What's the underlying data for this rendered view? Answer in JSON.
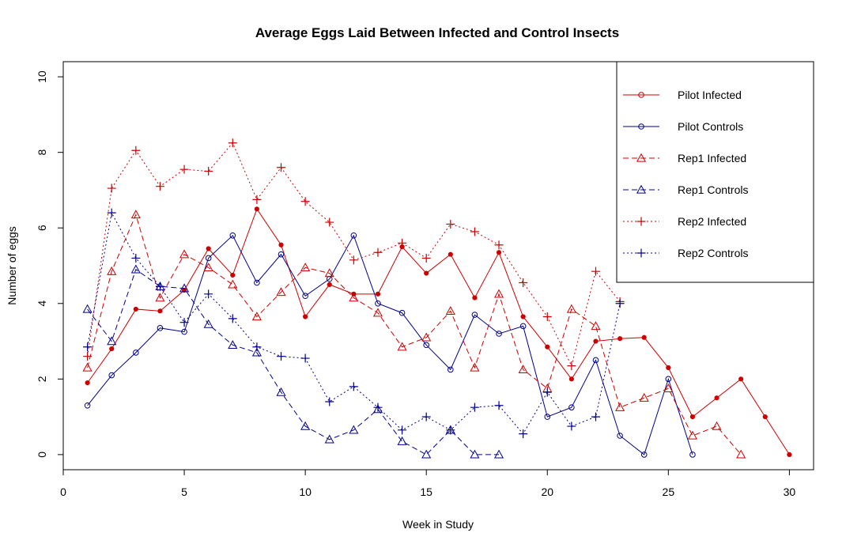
{
  "chart_data": {
    "type": "line",
    "title": "Average Eggs Laid Between Infected and Control Insects",
    "xlabel": "Week in Study",
    "ylabel": "Number of eggs",
    "xlim": [
      0,
      31
    ],
    "ylim": [
      -0.4,
      10.4
    ],
    "xticks": [
      0,
      5,
      10,
      15,
      20,
      25,
      30
    ],
    "yticks": [
      0,
      2,
      4,
      6,
      8,
      10
    ],
    "grid": false,
    "legend_position": "top-right",
    "colors": {
      "infected": "#cc0000",
      "controls": "#00008b"
    },
    "series": [
      {
        "name": "Pilot Infected",
        "color": "#cc0000",
        "line": "solid",
        "marker": "circle",
        "x": [
          1,
          2,
          3,
          4,
          5,
          6,
          7,
          8,
          9,
          10,
          11,
          12,
          13,
          14,
          15,
          16,
          17,
          18,
          19,
          20,
          21,
          22,
          23,
          24,
          25,
          26,
          27,
          28,
          29,
          30
        ],
        "y": [
          1.9,
          2.8,
          3.85,
          3.8,
          4.35,
          5.45,
          4.75,
          6.5,
          5.55,
          3.65,
          4.5,
          4.25,
          4.25,
          5.5,
          4.8,
          5.3,
          4.15,
          5.35,
          3.65,
          2.85,
          2.0,
          3.0,
          3.07,
          3.1,
          2.3,
          1.0,
          1.5,
          2.0,
          1.0,
          0.0
        ]
      },
      {
        "name": "Pilot Controls",
        "color": "#00008b",
        "line": "solid",
        "marker": "circle",
        "x": [
          1,
          2,
          3,
          4,
          5,
          6,
          7,
          8,
          9,
          10,
          11,
          12,
          13,
          14,
          15,
          16,
          17,
          18,
          19,
          20,
          21,
          22,
          23,
          24,
          25,
          26
        ],
        "y": [
          1.3,
          2.1,
          2.7,
          3.35,
          3.25,
          5.2,
          5.8,
          4.55,
          5.3,
          4.2,
          4.65,
          5.8,
          4.0,
          3.75,
          2.9,
          2.25,
          3.7,
          3.2,
          3.4,
          1.0,
          1.25,
          2.5,
          0.5,
          0.0,
          2.0,
          0.0
        ]
      },
      {
        "name": "Rep1 Infected",
        "color": "#cc0000",
        "line": "dashed",
        "marker": "triangle",
        "x": [
          1,
          2,
          3,
          4,
          5,
          6,
          7,
          8,
          9,
          10,
          11,
          12,
          13,
          14,
          15,
          16,
          17,
          18,
          19,
          20,
          21,
          22,
          23,
          24,
          25,
          26,
          27,
          28
        ],
        "y": [
          2.3,
          4.85,
          6.35,
          4.15,
          5.3,
          4.95,
          4.5,
          3.65,
          4.3,
          4.95,
          4.8,
          4.15,
          3.75,
          2.85,
          3.1,
          3.8,
          2.3,
          4.25,
          2.25,
          1.75,
          3.85,
          3.4,
          1.25,
          1.5,
          1.75,
          0.5,
          0.75,
          0.0
        ]
      },
      {
        "name": "Rep1 Controls",
        "color": "#00008b",
        "line": "dashed",
        "marker": "triangle",
        "x": [
          1,
          2,
          3,
          4,
          5,
          6,
          7,
          8,
          9,
          10,
          11,
          12,
          13,
          14,
          15,
          16,
          17,
          18
        ],
        "y": [
          3.85,
          3.0,
          4.9,
          4.45,
          4.4,
          3.45,
          2.9,
          2.7,
          1.65,
          0.75,
          0.4,
          0.65,
          1.2,
          0.35,
          0.0,
          0.65,
          0.0,
          0.0
        ]
      },
      {
        "name": "Rep2 Infected",
        "color": "#cc0000",
        "line": "dotted",
        "marker": "plus",
        "x": [
          1,
          2,
          3,
          4,
          5,
          6,
          7,
          8,
          9,
          10,
          11,
          12,
          13,
          14,
          15,
          16,
          17,
          18,
          19,
          20,
          21,
          22,
          23
        ],
        "y": [
          2.6,
          7.05,
          8.05,
          7.1,
          7.55,
          7.5,
          8.25,
          6.75,
          7.6,
          6.7,
          6.15,
          5.15,
          5.35,
          5.6,
          5.2,
          6.1,
          5.9,
          5.55,
          4.55,
          3.65,
          2.35,
          4.85,
          4.05
        ]
      },
      {
        "name": "Rep2 Controls",
        "color": "#00008b",
        "line": "dotted",
        "marker": "plus",
        "x": [
          1,
          2,
          3,
          4,
          5,
          6,
          7,
          8,
          9,
          10,
          11,
          12,
          13,
          14,
          15,
          16,
          17,
          18,
          19,
          20,
          21,
          22,
          23
        ],
        "y": [
          2.85,
          6.4,
          5.2,
          4.45,
          3.5,
          4.25,
          3.6,
          2.85,
          2.6,
          2.55,
          1.4,
          1.8,
          1.25,
          0.65,
          1.0,
          0.65,
          1.25,
          1.3,
          0.55,
          1.65,
          0.75,
          1.0,
          4.0
        ]
      }
    ]
  }
}
